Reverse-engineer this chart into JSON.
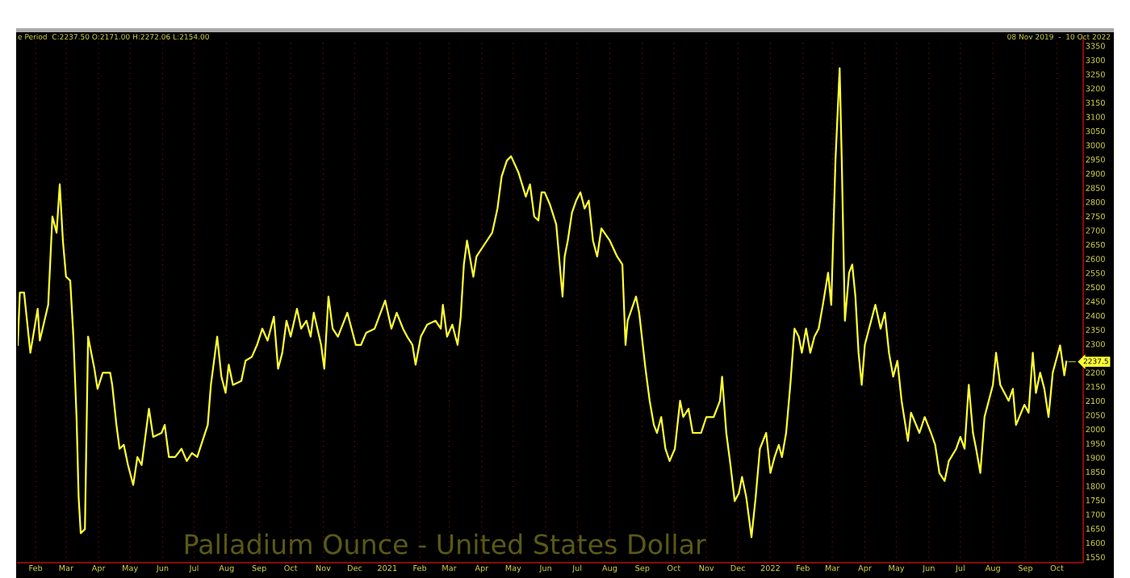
{
  "chart_data": {
    "type": "line",
    "title": "Palladium Ounce - United States Dollar",
    "annotations": [
      "e Period  C:2237.50 O:2171.00 H:2272.06 L:2154.00",
      "08 Nov 2019  -  10 Oct 2022",
      {
        "text": "2237.5",
        "x": "2022-10-10",
        "y": 2237.5
      }
    ],
    "x": [
      "2020-01-15",
      "2020-01-17",
      "2020-01-21",
      "2020-01-27",
      "2020-02-03",
      "2020-02-05",
      "2020-02-13",
      "2020-02-17",
      "2020-02-21",
      "2020-02-24",
      "2020-02-27",
      "2020-03-01",
      "2020-03-05",
      "2020-03-08",
      "2020-03-11",
      "2020-03-13",
      "2020-03-15",
      "2020-03-19",
      "2020-03-22",
      "2020-03-28",
      "2020-03-31",
      "2020-04-05",
      "2020-04-12",
      "2020-04-14",
      "2020-04-18",
      "2020-04-21",
      "2020-04-25",
      "2020-04-29",
      "2020-05-04",
      "2020-05-08",
      "2020-05-12",
      "2020-05-19",
      "2020-05-23",
      "2020-05-31",
      "2020-06-03",
      "2020-06-07",
      "2020-06-13",
      "2020-06-19",
      "2020-06-24",
      "2020-06-29",
      "2020-07-04",
      "2020-07-09",
      "2020-07-14",
      "2020-07-17",
      "2020-07-23",
      "2020-07-27",
      "2020-07-31",
      "2020-08-03",
      "2020-08-07",
      "2020-08-15",
      "2020-08-19",
      "2020-08-25",
      "2020-08-30",
      "2020-09-04",
      "2020-09-09",
      "2020-09-15",
      "2020-09-19",
      "2020-09-23",
      "2020-09-27",
      "2020-10-01",
      "2020-10-07",
      "2020-10-11",
      "2020-10-16",
      "2020-10-20",
      "2020-10-23",
      "2020-10-30",
      "2020-11-02",
      "2020-11-06",
      "2020-11-10",
      "2020-11-15",
      "2020-11-21",
      "2020-11-24",
      "2020-11-28",
      "2020-12-02",
      "2020-12-07",
      "2020-12-12",
      "2020-12-20",
      "2020-12-30",
      "2021-01-05",
      "2021-01-10",
      "2021-01-16",
      "2021-01-20",
      "2021-01-25",
      "2021-01-28",
      "2021-02-02",
      "2021-02-08",
      "2021-02-16",
      "2021-02-21",
      "2021-02-23",
      "2021-02-27",
      "2021-03-04",
      "2021-03-09",
      "2021-03-12",
      "2021-03-15",
      "2021-03-18",
      "2021-03-24",
      "2021-03-27",
      "2021-04-06",
      "2021-04-11",
      "2021-04-16",
      "2021-04-20",
      "2021-04-25",
      "2021-04-29",
      "2021-05-06",
      "2021-05-13",
      "2021-05-17",
      "2021-05-21",
      "2021-05-25",
      "2021-05-28",
      "2021-05-31",
      "2021-06-05",
      "2021-06-11",
      "2021-06-17",
      "2021-06-19",
      "2021-06-22",
      "2021-06-26",
      "2021-06-30",
      "2021-07-04",
      "2021-07-08",
      "2021-07-12",
      "2021-07-16",
      "2021-07-20",
      "2021-07-24",
      "2021-08-01",
      "2021-08-08",
      "2021-08-13",
      "2021-08-16",
      "2021-08-18",
      "2021-08-26",
      "2021-08-29",
      "2021-09-04",
      "2021-09-08",
      "2021-09-12",
      "2021-09-15",
      "2021-09-19",
      "2021-09-23",
      "2021-09-27",
      "2021-10-02",
      "2021-10-07",
      "2021-10-10",
      "2021-10-15",
      "2021-10-19",
      "2021-10-27",
      "2021-11-01",
      "2021-11-08",
      "2021-11-14",
      "2021-11-16",
      "2021-11-20",
      "2021-11-24",
      "2021-11-28",
      "2021-12-02",
      "2021-12-05",
      "2021-12-09",
      "2021-12-11",
      "2021-12-14",
      "2021-12-18",
      "2021-12-22",
      "2021-12-28",
      "2022-01-01",
      "2022-01-05",
      "2022-01-09",
      "2022-01-12",
      "2022-01-16",
      "2022-01-20",
      "2022-01-24",
      "2022-01-28",
      "2022-01-31",
      "2022-02-04",
      "2022-02-08",
      "2022-02-12",
      "2022-02-16",
      "2022-02-20",
      "2022-02-25",
      "2022-02-28",
      "2022-03-04",
      "2022-03-08",
      "2022-03-10",
      "2022-03-13",
      "2022-03-17",
      "2022-03-20",
      "2022-03-23",
      "2022-03-26",
      "2022-03-29",
      "2022-04-01",
      "2022-04-05",
      "2022-04-11",
      "2022-04-16",
      "2022-04-20",
      "2022-04-24",
      "2022-04-28",
      "2022-05-02",
      "2022-05-06",
      "2022-05-12",
      "2022-05-15",
      "2022-05-23",
      "2022-05-28",
      "2022-06-03",
      "2022-06-07",
      "2022-06-11",
      "2022-06-16",
      "2022-06-20",
      "2022-06-27",
      "2022-07-01",
      "2022-07-05",
      "2022-07-09",
      "2022-07-13",
      "2022-07-16",
      "2022-07-20",
      "2022-07-24",
      "2022-08-01",
      "2022-08-04",
      "2022-08-08",
      "2022-08-16",
      "2022-08-20",
      "2022-08-23",
      "2022-08-31",
      "2022-09-04",
      "2022-09-08",
      "2022-09-11",
      "2022-09-15",
      "2022-09-19",
      "2022-09-23",
      "2022-09-27",
      "2022-10-04",
      "2022-10-08",
      "2022-10-10"
    ],
    "series": [
      {
        "color": "#ffff33",
        "values": [
          2297,
          2481,
          2481,
          2269,
          2424,
          2312,
          2438,
          2749,
          2692,
          2862,
          2664,
          2537,
          2523,
          2326,
          2043,
          1761,
          1634,
          1648,
          2326,
          2213,
          2142,
          2199,
          2199,
          2156,
          2015,
          1931,
          1945,
          1874,
          1804,
          1902,
          1874,
          2072,
          1973,
          1987,
          2015,
          1902,
          1902,
          1931,
          1888,
          1916,
          1902,
          1959,
          2015,
          2156,
          2326,
          2185,
          2128,
          2227,
          2156,
          2170,
          2241,
          2255,
          2297,
          2354,
          2312,
          2396,
          2213,
          2269,
          2382,
          2326,
          2424,
          2354,
          2382,
          2326,
          2410,
          2297,
          2213,
          2467,
          2354,
          2326,
          2382,
          2410,
          2354,
          2297,
          2297,
          2340,
          2354,
          2453,
          2354,
          2410,
          2354,
          2326,
          2297,
          2227,
          2326,
          2368,
          2382,
          2354,
          2438,
          2326,
          2368,
          2297,
          2396,
          2580,
          2664,
          2537,
          2608,
          2664,
          2692,
          2777,
          2890,
          2946,
          2961,
          2904,
          2819,
          2862,
          2749,
          2735,
          2834,
          2834,
          2791,
          2721,
          2467,
          2608,
          2664,
          2763,
          2805,
          2834,
          2777,
          2805,
          2664,
          2608,
          2707,
          2664,
          2608,
          2580,
          2297,
          2382,
          2467,
          2410,
          2213,
          2100,
          2015,
          1987,
          2043,
          1931,
          1888,
          1931,
          2100,
          2043,
          2072,
          1987,
          1987,
          2043,
          2043,
          2100,
          2185,
          1987,
          1874,
          1747,
          1775,
          1832,
          1761,
          1705,
          1620,
          1761,
          1931,
          1987,
          1846,
          1902,
          1945,
          1902,
          1987,
          2156,
          2354,
          2326,
          2269,
          2354,
          2269,
          2326,
          2354,
          2438,
          2551,
          2438,
          2946,
          3271,
          2946,
          2382,
          2551,
          2580,
          2467,
          2269,
          2156,
          2297,
          2354,
          2438,
          2354,
          2410,
          2269,
          2185,
          2241,
          2100,
          1959,
          2058,
          1987,
          2043,
          1987,
          1945,
          1846,
          1818,
          1888,
          1931,
          1973,
          1931,
          2156,
          1987,
          1931,
          1846,
          2043,
          2156,
          2269,
          2156,
          2100,
          2142,
          2015,
          2086,
          2058,
          2269,
          2128,
          2199,
          2142,
          2043,
          2199,
          2295,
          2190,
          2238
        ]
      }
    ],
    "xlim": [
      "2020-01-15",
      "2022-10-26"
    ],
    "xticks": [
      {
        "value": "2020-02-01",
        "label": "Feb"
      },
      {
        "value": "2020-03-01",
        "label": "Mar"
      },
      {
        "value": "2020-04-01",
        "label": "Apr"
      },
      {
        "value": "2020-05-01",
        "label": "May"
      },
      {
        "value": "2020-06-01",
        "label": "Jun"
      },
      {
        "value": "2020-07-01",
        "label": "Jul"
      },
      {
        "value": "2020-08-01",
        "label": "Aug"
      },
      {
        "value": "2020-09-01",
        "label": "Sep"
      },
      {
        "value": "2020-10-01",
        "label": "Oct"
      },
      {
        "value": "2020-11-01",
        "label": "Nov"
      },
      {
        "value": "2020-12-01",
        "label": "Dec"
      },
      {
        "value": "2021-01-01",
        "label": "2021"
      },
      {
        "value": "2021-02-01",
        "label": "Feb"
      },
      {
        "value": "2021-03-01",
        "label": "Mar"
      },
      {
        "value": "2021-04-01",
        "label": "Apr"
      },
      {
        "value": "2021-05-01",
        "label": "May"
      },
      {
        "value": "2021-06-01",
        "label": "Jun"
      },
      {
        "value": "2021-07-01",
        "label": "Jul"
      },
      {
        "value": "2021-08-01",
        "label": "Aug"
      },
      {
        "value": "2021-09-01",
        "label": "Sep"
      },
      {
        "value": "2021-10-01",
        "label": "Oct"
      },
      {
        "value": "2021-11-01",
        "label": "Nov"
      },
      {
        "value": "2021-12-01",
        "label": "Dec"
      },
      {
        "value": "2022-01-01",
        "label": "2022"
      },
      {
        "value": "2022-02-01",
        "label": "Feb"
      },
      {
        "value": "2022-03-01",
        "label": "Mar"
      },
      {
        "value": "2022-04-01",
        "label": "Apr"
      },
      {
        "value": "2022-05-01",
        "label": "May"
      },
      {
        "value": "2022-06-01",
        "label": "Jun"
      },
      {
        "value": "2022-07-01",
        "label": "Jul"
      },
      {
        "value": "2022-08-01",
        "label": "Aug"
      },
      {
        "value": "2022-09-01",
        "label": "Sep"
      },
      {
        "value": "2022-10-01",
        "label": "Oct"
      }
    ],
    "ylim": [
      1530,
      3375
    ],
    "yticks": [
      1550,
      1600,
      1650,
      1700,
      1750,
      1800,
      1850,
      1900,
      1950,
      2000,
      2050,
      2100,
      2150,
      2200,
      2300,
      2350,
      2400,
      2450,
      2500,
      2550,
      2600,
      2650,
      2700,
      2750,
      2800,
      2850,
      2900,
      2950,
      3000,
      3050,
      3100,
      3150,
      3200,
      3250,
      3300,
      3350
    ],
    "grid": "x",
    "legend": false,
    "marker": "none",
    "line_style": "solid"
  }
}
